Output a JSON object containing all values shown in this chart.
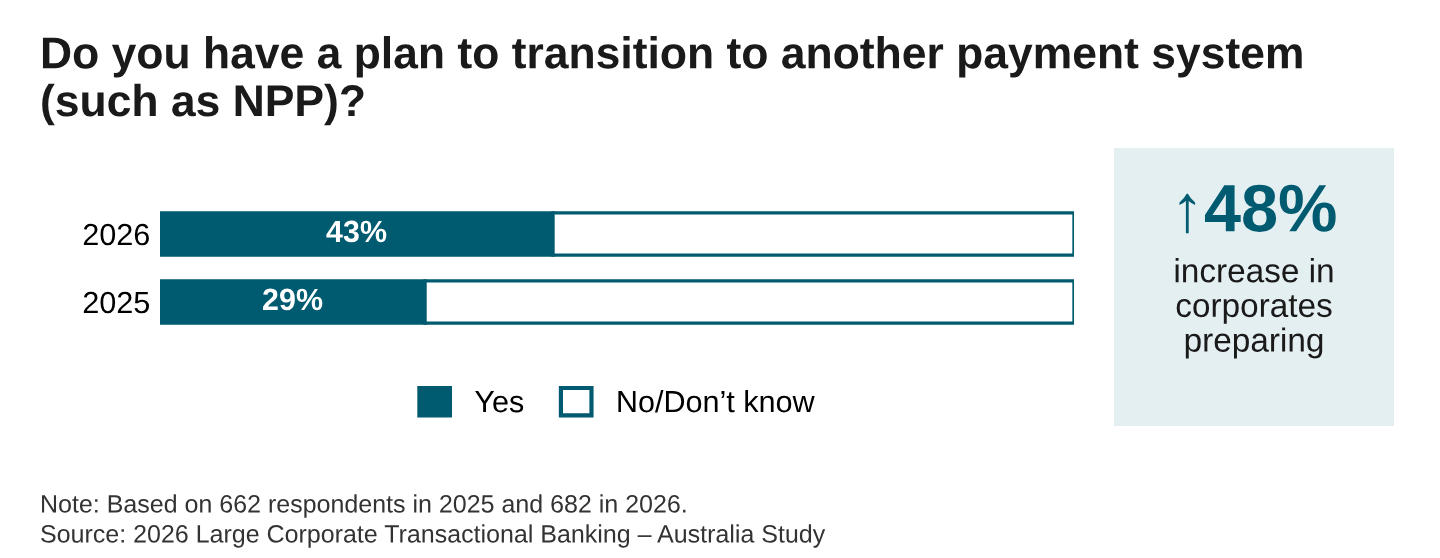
{
  "chart_data": {
    "type": "bar",
    "orientation": "horizontal",
    "stacked": true,
    "title": "Do you have a plan to transition to another payment system\n(such as NPP)?",
    "categories": [
      "2026",
      "2025"
    ],
    "series": [
      {
        "name": "Yes",
        "color": "#005b70",
        "values": [
          43,
          29
        ],
        "value_labels": [
          "43%",
          "29%"
        ]
      },
      {
        "name": "No/Don’t know",
        "color": "#ffffff",
        "values": [
          57,
          71
        ],
        "value_labels": [
          null,
          null
        ]
      }
    ],
    "legend": "bottom",
    "grid": false,
    "tick_labels": "y",
    "annotations": [
      "↑48%",
      "increase in\ncorporates\npreparing",
      "Note: Based on 662 respondents in 2025 and 682 in 2026.",
      "Source: 2026 Large Corporate Transactional Banking – Australia Study"
    ]
  }
}
